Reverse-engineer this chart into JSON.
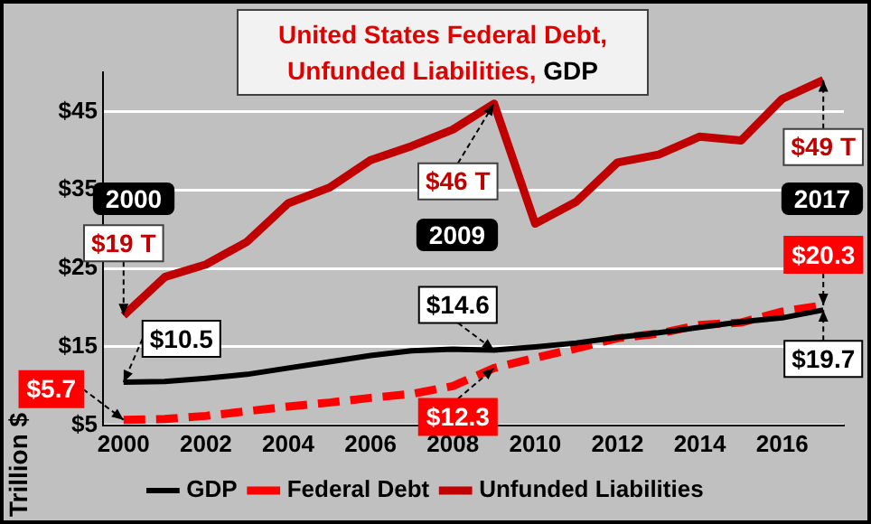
{
  "chart_data": {
    "type": "line",
    "title": "United States Federal Debt, Unfunded Liabilities, GDP",
    "ylabel": "Trillion $",
    "x": [
      2000,
      2001,
      2002,
      2003,
      2004,
      2005,
      2006,
      2007,
      2008,
      2009,
      2010,
      2011,
      2012,
      2013,
      2014,
      2015,
      2016,
      2017
    ],
    "series": [
      {
        "name": "Unfunded Liabilities",
        "color": "#c00000",
        "values": [
          19,
          23.9,
          25.5,
          28.4,
          33.3,
          35.3,
          38.8,
          40.6,
          42.7,
          46,
          30.7,
          33.5,
          38.5,
          39.5,
          41.8,
          41.3,
          46.6,
          49
        ]
      },
      {
        "name": "Federal Debt",
        "color": "#ff0000",
        "line_style": "dashed",
        "values": [
          5.7,
          5.8,
          6.2,
          6.8,
          7.4,
          7.9,
          8.5,
          9.0,
          10.0,
          12.3,
          13.6,
          14.8,
          16.1,
          16.7,
          17.8,
          18.1,
          19.5,
          20.3
        ]
      },
      {
        "name": "GDP",
        "color": "#000000",
        "values": [
          10.5,
          10.6,
          11.0,
          11.5,
          12.3,
          13.1,
          13.9,
          14.5,
          14.7,
          14.6,
          15.0,
          15.5,
          16.2,
          16.8,
          17.5,
          18.2,
          18.7,
          19.7
        ]
      }
    ],
    "xlim": [
      1999.5,
      2017.5
    ],
    "xticks": [
      2000,
      2002,
      2004,
      2006,
      2008,
      2010,
      2012,
      2014,
      2016
    ],
    "ylim": [
      5,
      50
    ],
    "yticks": [
      {
        "value": 5,
        "label": "$5"
      },
      {
        "value": 15,
        "label": "$15"
      },
      {
        "value": 25,
        "label": "$25"
      },
      {
        "value": 35,
        "label": "$35"
      },
      {
        "value": 45,
        "label": "$45"
      }
    ],
    "grid": "y",
    "legend": "bottom",
    "marker": "none",
    "line_style": "solid",
    "annotations": [
      "2000",
      "2009",
      "2017",
      {
        "text": "$19 T",
        "x": 2000,
        "y": 19
      },
      {
        "text": "$46 T",
        "x": 2009,
        "y": 46
      },
      {
        "text": "$49 T",
        "x": 2017,
        "y": 49
      },
      {
        "text": "$10.5",
        "x": 2000,
        "y": 10.5
      },
      {
        "text": "$14.6",
        "x": 2009,
        "y": 14.6
      },
      {
        "text": "$19.7",
        "x": 2017,
        "y": 19.7
      },
      {
        "text": "$5.7",
        "x": 2000,
        "y": 5.7
      },
      {
        "text": "$12.3",
        "x": 2009,
        "y": 12.3
      },
      {
        "text": "$20.3",
        "x": 2017,
        "y": 20.3
      }
    ]
  }
}
